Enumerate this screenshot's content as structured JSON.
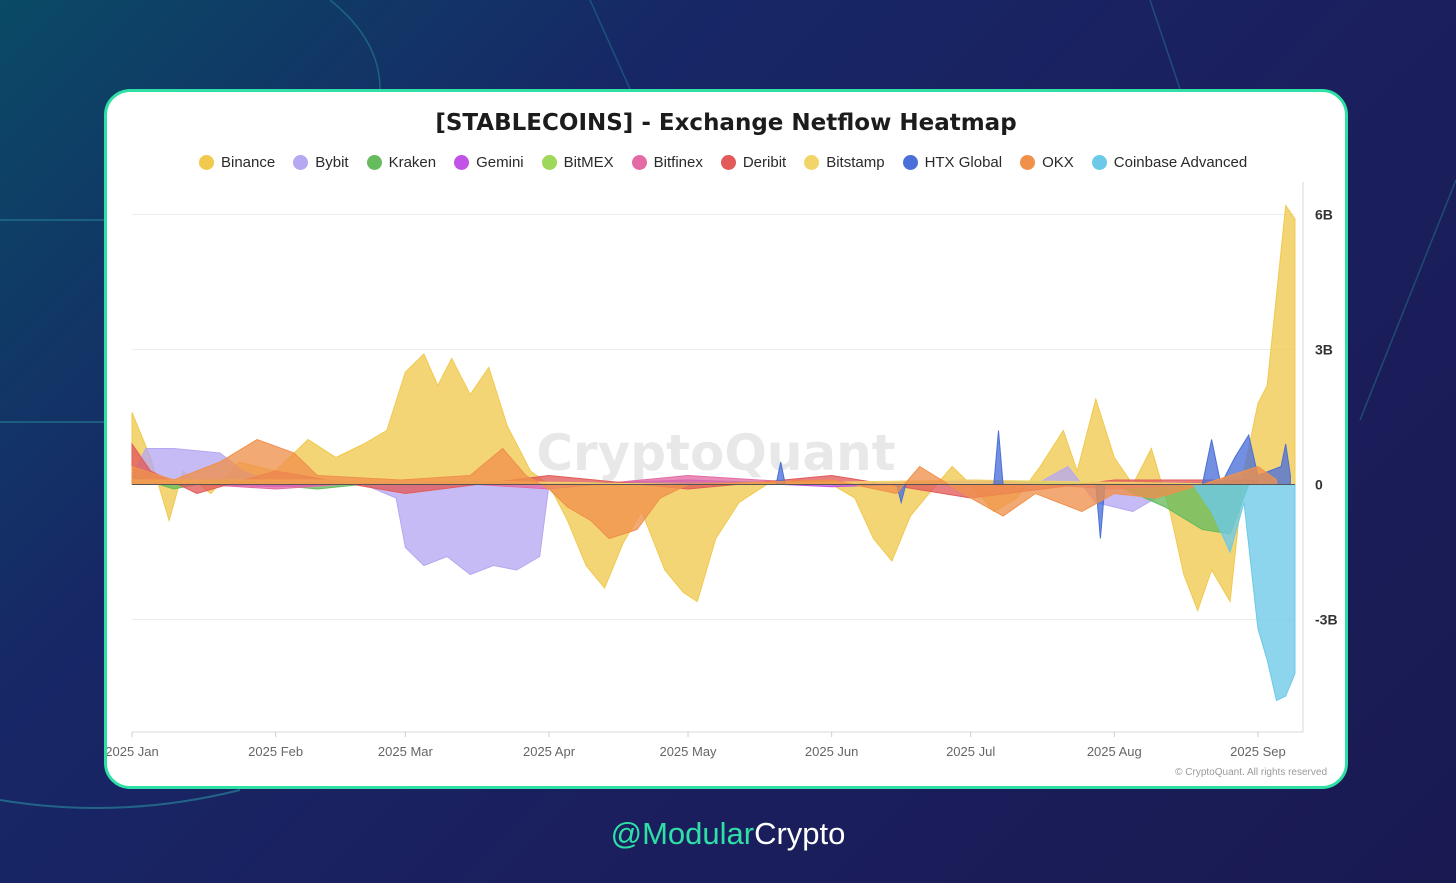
{
  "page": {
    "handle_accent": "@Modular",
    "handle_rest": "Crypto",
    "accent_color": "#2fe0a6"
  },
  "chart_data": {
    "type": "area",
    "title": "[STABLECOINS] - Exchange Netflow Heatmap",
    "watermark": "CryptoQuant",
    "copyright": "© CryptoQuant. All rights reserved",
    "xlabel": "",
    "ylabel": "",
    "x_ticks": [
      "2025 Jan",
      "2025 Feb",
      "2025 Mar",
      "2025 Apr",
      "2025 May",
      "2025 Jun",
      "2025 Jul",
      "2025 Aug",
      "2025 Sep"
    ],
    "y_ticks": [
      {
        "value": 6000000000,
        "label": "6B"
      },
      {
        "value": 3000000000,
        "label": "3B"
      },
      {
        "value": 0,
        "label": "0"
      },
      {
        "value": -3000000000,
        "label": "-3B"
      }
    ],
    "ylim": [
      -5500000000,
      6500000000
    ],
    "grid": true,
    "legend_position": "top",
    "x_range": [
      "2025-01-01",
      "2025-09-09"
    ],
    "series": [
      {
        "name": "Binance",
        "color": "#f0c94e",
        "points": [
          [
            "2025-01-01",
            1.6
          ],
          [
            "2025-01-05",
            0.6
          ],
          [
            "2025-01-09",
            -0.8
          ],
          [
            "2025-01-12",
            0.3
          ],
          [
            "2025-01-18",
            -0.2
          ],
          [
            "2025-01-24",
            0.5
          ],
          [
            "2025-02-01",
            0.3
          ],
          [
            "2025-02-08",
            1.0
          ],
          [
            "2025-02-14",
            0.6
          ],
          [
            "2025-02-20",
            0.9
          ],
          [
            "2025-02-25",
            1.2
          ],
          [
            "2025-03-01",
            2.5
          ],
          [
            "2025-03-05",
            2.9
          ],
          [
            "2025-03-08",
            2.2
          ],
          [
            "2025-03-11",
            2.8
          ],
          [
            "2025-03-15",
            2.0
          ],
          [
            "2025-03-19",
            2.6
          ],
          [
            "2025-03-23",
            1.3
          ],
          [
            "2025-03-28",
            0.3
          ],
          [
            "2025-04-01",
            0.0
          ],
          [
            "2025-04-05",
            -0.8
          ],
          [
            "2025-04-09",
            -1.8
          ],
          [
            "2025-04-13",
            -2.3
          ],
          [
            "2025-04-17",
            -1.3
          ],
          [
            "2025-04-21",
            -0.6
          ],
          [
            "2025-04-26",
            -1.9
          ],
          [
            "2025-04-30",
            -2.4
          ],
          [
            "2025-05-03",
            -2.6
          ],
          [
            "2025-05-07",
            -1.2
          ],
          [
            "2025-05-12",
            -0.4
          ],
          [
            "2025-05-18",
            0.0
          ],
          [
            "2025-05-25",
            0.1
          ],
          [
            "2025-06-01",
            0.0
          ],
          [
            "2025-06-06",
            -0.3
          ],
          [
            "2025-06-10",
            -1.2
          ],
          [
            "2025-06-14",
            -1.7
          ],
          [
            "2025-06-18",
            -0.7
          ],
          [
            "2025-06-22",
            -0.2
          ],
          [
            "2025-06-27",
            0.4
          ],
          [
            "2025-07-01",
            0.0
          ],
          [
            "2025-07-06",
            -0.6
          ],
          [
            "2025-07-11",
            -0.3
          ],
          [
            "2025-07-16",
            0.4
          ],
          [
            "2025-07-21",
            1.2
          ],
          [
            "2025-07-24",
            0.3
          ],
          [
            "2025-07-28",
            1.9
          ],
          [
            "2025-08-01",
            0.6
          ],
          [
            "2025-08-05",
            0.0
          ],
          [
            "2025-08-09",
            0.8
          ],
          [
            "2025-08-13",
            -0.6
          ],
          [
            "2025-08-16",
            -2.0
          ],
          [
            "2025-08-19",
            -2.8
          ],
          [
            "2025-08-22",
            -1.9
          ],
          [
            "2025-08-26",
            -2.6
          ],
          [
            "2025-08-29",
            0.3
          ],
          [
            "2025-09-01",
            1.8
          ],
          [
            "2025-09-03",
            2.2
          ],
          [
            "2025-09-05",
            4.2
          ],
          [
            "2025-09-07",
            6.2
          ],
          [
            "2025-09-09",
            5.9
          ]
        ]
      },
      {
        "name": "Bybit",
        "color": "#b6a8f1",
        "points": [
          [
            "2025-01-01",
            0.2
          ],
          [
            "2025-01-04",
            0.8
          ],
          [
            "2025-01-10",
            0.8
          ],
          [
            "2025-01-20",
            0.7
          ],
          [
            "2025-01-25",
            0.3
          ],
          [
            "2025-02-01",
            0.0
          ],
          [
            "2025-02-20",
            0.0
          ],
          [
            "2025-02-27",
            -0.3
          ],
          [
            "2025-03-01",
            -1.4
          ],
          [
            "2025-03-05",
            -1.8
          ],
          [
            "2025-03-10",
            -1.6
          ],
          [
            "2025-03-15",
            -2.0
          ],
          [
            "2025-03-20",
            -1.8
          ],
          [
            "2025-03-25",
            -1.9
          ],
          [
            "2025-03-30",
            -1.6
          ],
          [
            "2025-04-01",
            0.0
          ],
          [
            "2025-07-15",
            0.0
          ],
          [
            "2025-07-22",
            0.4
          ],
          [
            "2025-07-28",
            -0.4
          ],
          [
            "2025-08-05",
            -0.6
          ],
          [
            "2025-08-10",
            -0.3
          ],
          [
            "2025-08-15",
            0.0
          ]
        ]
      },
      {
        "name": "Kraken",
        "color": "#66bb5e",
        "points": [
          [
            "2025-01-01",
            0.2
          ],
          [
            "2025-01-10",
            -0.1
          ],
          [
            "2025-01-20",
            0.1
          ],
          [
            "2025-02-10",
            -0.1
          ],
          [
            "2025-03-01",
            0.1
          ],
          [
            "2025-04-01",
            0.0
          ],
          [
            "2025-05-01",
            0.1
          ],
          [
            "2025-06-01",
            0.0
          ],
          [
            "2025-07-01",
            0.1
          ],
          [
            "2025-08-01",
            0.0
          ],
          [
            "2025-08-12",
            -0.5
          ],
          [
            "2025-08-20",
            -1.0
          ],
          [
            "2025-08-26",
            -1.1
          ],
          [
            "2025-08-30",
            0.0
          ]
        ]
      },
      {
        "name": "Gemini",
        "color": "#c153e6",
        "points": [
          [
            "2025-01-01",
            0.05
          ],
          [
            "2025-02-01",
            -0.05
          ],
          [
            "2025-03-01",
            0.05
          ],
          [
            "2025-04-01",
            0.0
          ],
          [
            "2025-05-01",
            0.1
          ],
          [
            "2025-06-01",
            -0.05
          ],
          [
            "2025-07-01",
            0.05
          ],
          [
            "2025-08-01",
            0.0
          ],
          [
            "2025-09-01",
            0.05
          ]
        ]
      },
      {
        "name": "BitMEX",
        "color": "#9ed85a",
        "points": [
          [
            "2025-01-01",
            0.05
          ],
          [
            "2025-02-01",
            0.0
          ],
          [
            "2025-03-01",
            0.05
          ],
          [
            "2025-04-01",
            0.0
          ],
          [
            "2025-05-01",
            0.05
          ],
          [
            "2025-06-01",
            0.0
          ],
          [
            "2025-07-01",
            0.05
          ],
          [
            "2025-08-01",
            0.0
          ],
          [
            "2025-09-01",
            0.05
          ]
        ]
      },
      {
        "name": "Bitfinex",
        "color": "#e46aa5",
        "points": [
          [
            "2025-01-01",
            0.1
          ],
          [
            "2025-02-01",
            -0.1
          ],
          [
            "2025-03-01",
            0.1
          ],
          [
            "2025-04-01",
            -0.1
          ],
          [
            "2025-05-01",
            0.2
          ],
          [
            "2025-06-01",
            0.0
          ],
          [
            "2025-07-01",
            0.1
          ],
          [
            "2025-08-01",
            -0.1
          ],
          [
            "2025-09-01",
            0.1
          ]
        ]
      },
      {
        "name": "Deribit",
        "color": "#e25a5a",
        "points": [
          [
            "2025-01-01",
            0.9
          ],
          [
            "2025-01-05",
            0.3
          ],
          [
            "2025-01-15",
            -0.2
          ],
          [
            "2025-02-01",
            0.3
          ],
          [
            "2025-03-01",
            -0.2
          ],
          [
            "2025-04-01",
            0.2
          ],
          [
            "2025-05-01",
            -0.1
          ],
          [
            "2025-06-01",
            0.2
          ],
          [
            "2025-07-01",
            -0.3
          ],
          [
            "2025-08-01",
            0.1
          ],
          [
            "2025-09-01",
            0.1
          ]
        ]
      },
      {
        "name": "Bitstamp",
        "color": "#f2d468",
        "points": [
          [
            "2025-01-01",
            0.1
          ],
          [
            "2025-03-01",
            0.1
          ],
          [
            "2025-05-01",
            0.0
          ],
          [
            "2025-07-01",
            0.1
          ],
          [
            "2025-09-01",
            0.0
          ]
        ]
      },
      {
        "name": "HTX Global",
        "color": "#4a6fd8",
        "points": [
          [
            "2025-01-01",
            0.0
          ],
          [
            "2025-05-20",
            0.0
          ],
          [
            "2025-05-21",
            0.5
          ],
          [
            "2025-05-22",
            0.0
          ],
          [
            "2025-06-15",
            0.0
          ],
          [
            "2025-06-16",
            -0.4
          ],
          [
            "2025-06-17",
            0.0
          ],
          [
            "2025-07-06",
            0.0
          ],
          [
            "2025-07-07",
            1.2
          ],
          [
            "2025-07-08",
            0.0
          ],
          [
            "2025-07-28",
            0.0
          ],
          [
            "2025-07-29",
            -1.2
          ],
          [
            "2025-07-30",
            0.0
          ],
          [
            "2025-08-20",
            0.0
          ],
          [
            "2025-08-22",
            1.0
          ],
          [
            "2025-08-24",
            0.0
          ],
          [
            "2025-08-27",
            0.6
          ],
          [
            "2025-08-30",
            1.1
          ],
          [
            "2025-09-01",
            0.2
          ],
          [
            "2025-09-06",
            0.4
          ],
          [
            "2025-09-07",
            0.9
          ],
          [
            "2025-09-08",
            0.2
          ]
        ]
      },
      {
        "name": "OKX",
        "color": "#f0914b",
        "points": [
          [
            "2025-01-01",
            0.4
          ],
          [
            "2025-01-10",
            0.1
          ],
          [
            "2025-01-20",
            0.5
          ],
          [
            "2025-01-28",
            1.0
          ],
          [
            "2025-02-05",
            0.7
          ],
          [
            "2025-02-10",
            0.2
          ],
          [
            "2025-02-28",
            0.1
          ],
          [
            "2025-03-15",
            0.2
          ],
          [
            "2025-03-22",
            0.8
          ],
          [
            "2025-03-27",
            0.2
          ],
          [
            "2025-04-01",
            -0.1
          ],
          [
            "2025-04-05",
            -0.5
          ],
          [
            "2025-04-10",
            -0.8
          ],
          [
            "2025-04-14",
            -1.2
          ],
          [
            "2025-04-20",
            -1.0
          ],
          [
            "2025-04-25",
            -0.3
          ],
          [
            "2025-05-01",
            0.0
          ],
          [
            "2025-06-01",
            0.1
          ],
          [
            "2025-06-15",
            -0.2
          ],
          [
            "2025-06-20",
            0.4
          ],
          [
            "2025-07-01",
            -0.3
          ],
          [
            "2025-07-08",
            -0.7
          ],
          [
            "2025-07-15",
            -0.2
          ],
          [
            "2025-07-25",
            -0.6
          ],
          [
            "2025-08-01",
            -0.2
          ],
          [
            "2025-08-10",
            -0.3
          ],
          [
            "2025-08-20",
            0.0
          ],
          [
            "2025-09-01",
            0.4
          ],
          [
            "2025-09-05",
            0.1
          ]
        ]
      },
      {
        "name": "Coinbase Advanced",
        "color": "#6cc9e8",
        "points": [
          [
            "2025-01-01",
            0.0
          ],
          [
            "2025-08-18",
            0.0
          ],
          [
            "2025-08-22",
            -0.6
          ],
          [
            "2025-08-26",
            -1.5
          ],
          [
            "2025-08-29",
            -0.4
          ],
          [
            "2025-09-01",
            -3.2
          ],
          [
            "2025-09-03",
            -3.9
          ],
          [
            "2025-09-05",
            -4.8
          ],
          [
            "2025-09-07",
            -4.7
          ],
          [
            "2025-09-09",
            -4.2
          ]
        ]
      }
    ],
    "y_unit_multiplier": 1000000000
  }
}
